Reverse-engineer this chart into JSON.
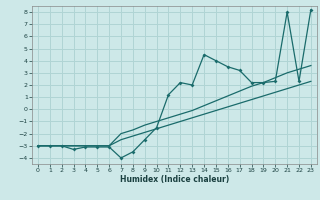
{
  "xlabel": "Humidex (Indice chaleur)",
  "background_color": "#cde8e8",
  "grid_color": "#b0d4d4",
  "line_color": "#1a6b6b",
  "xlim": [
    -0.5,
    23.5
  ],
  "ylim": [
    -4.5,
    8.5
  ],
  "xticks": [
    0,
    1,
    2,
    3,
    4,
    5,
    6,
    7,
    8,
    9,
    10,
    11,
    12,
    13,
    14,
    15,
    16,
    17,
    18,
    19,
    20,
    21,
    22,
    23
  ],
  "yticks": [
    -4,
    -3,
    -2,
    -1,
    0,
    1,
    2,
    3,
    4,
    5,
    6,
    7,
    8
  ],
  "s1x": [
    0,
    1,
    2,
    3,
    4,
    5,
    6,
    7,
    8,
    9,
    10,
    11,
    12,
    13,
    14,
    15,
    16,
    17,
    18,
    19,
    20,
    21,
    22,
    23
  ],
  "s1y": [
    -3.0,
    -3.0,
    -3.0,
    -3.0,
    -3.0,
    -3.0,
    -3.0,
    -2.5,
    -2.2,
    -1.9,
    -1.6,
    -1.3,
    -1.0,
    -0.7,
    -0.4,
    -0.1,
    0.2,
    0.5,
    0.8,
    1.1,
    1.4,
    1.7,
    2.0,
    2.3
  ],
  "s2x": [
    0,
    1,
    2,
    3,
    4,
    5,
    6,
    7,
    8,
    9,
    10,
    11,
    12,
    13,
    14,
    15,
    16,
    17,
    18,
    19,
    20,
    21,
    22,
    23
  ],
  "s2y": [
    -3.0,
    -3.0,
    -3.0,
    -3.0,
    -3.0,
    -3.0,
    -3.0,
    -2.0,
    -1.7,
    -1.3,
    -1.0,
    -0.7,
    -0.4,
    -0.1,
    0.3,
    0.7,
    1.1,
    1.5,
    1.9,
    2.2,
    2.6,
    3.0,
    3.3,
    3.6
  ],
  "s3x": [
    0,
    1,
    2,
    3,
    4,
    5,
    6,
    7,
    8,
    9,
    10,
    11,
    12,
    13,
    14,
    15,
    16,
    17,
    18,
    19,
    20,
    21,
    22,
    23
  ],
  "s3y": [
    -3.0,
    -3.0,
    -3.0,
    -3.3,
    -3.1,
    -3.1,
    -3.1,
    -4.0,
    -3.5,
    -2.5,
    -1.5,
    1.2,
    2.2,
    2.0,
    4.5,
    4.0,
    3.5,
    3.2,
    2.2,
    2.2,
    2.3,
    8.0,
    2.3,
    8.2
  ]
}
